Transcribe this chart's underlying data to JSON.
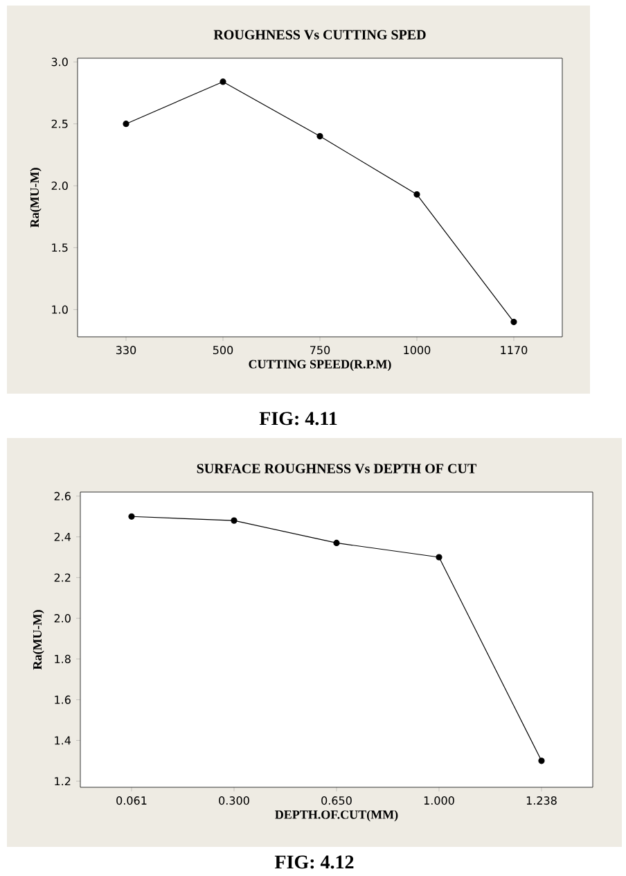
{
  "chart_data": [
    {
      "type": "line",
      "title": "ROUGHNESS Vs CUTTING SPED",
      "xlabel": "CUTTING SPEED(R.P.M)",
      "ylabel": "Ra(MU-M)",
      "categories": [
        "330",
        "500",
        "750",
        "1000",
        "1170"
      ],
      "values": [
        2.5,
        2.84,
        2.4,
        1.93,
        0.9
      ],
      "color": "#000000",
      "marker": "circle",
      "ylim": [
        0.78,
        3.03
      ],
      "yticks": [
        {
          "value": 1,
          "label": "1.0"
        },
        1.5,
        {
          "value": 2,
          "label": "2.0"
        },
        2.5,
        {
          "value": 3,
          "label": "3.0"
        }
      ],
      "annotations": [
        "FIG: 4.11"
      ]
    },
    {
      "type": "line",
      "title": "SURFACE ROUGHNESS Vs DEPTH OF CUT",
      "xlabel": "DEPTH.OF.CUT(MM)",
      "ylabel": "Ra(MU-M)",
      "categories": [
        "0.061",
        "0.300",
        "0.650",
        "1.000",
        "1.238"
      ],
      "values": [
        2.5,
        2.48,
        2.37,
        2.3,
        1.3
      ],
      "color": "#000000",
      "marker": "circle",
      "ylim": [
        1.17,
        2.62
      ],
      "yticks": [
        1.2,
        1.4,
        1.6,
        1.8,
        {
          "value": 2,
          "label": "2.0"
        },
        2.2,
        2.4,
        2.6
      ],
      "annotations": [
        "FIG: 4.12"
      ]
    }
  ]
}
